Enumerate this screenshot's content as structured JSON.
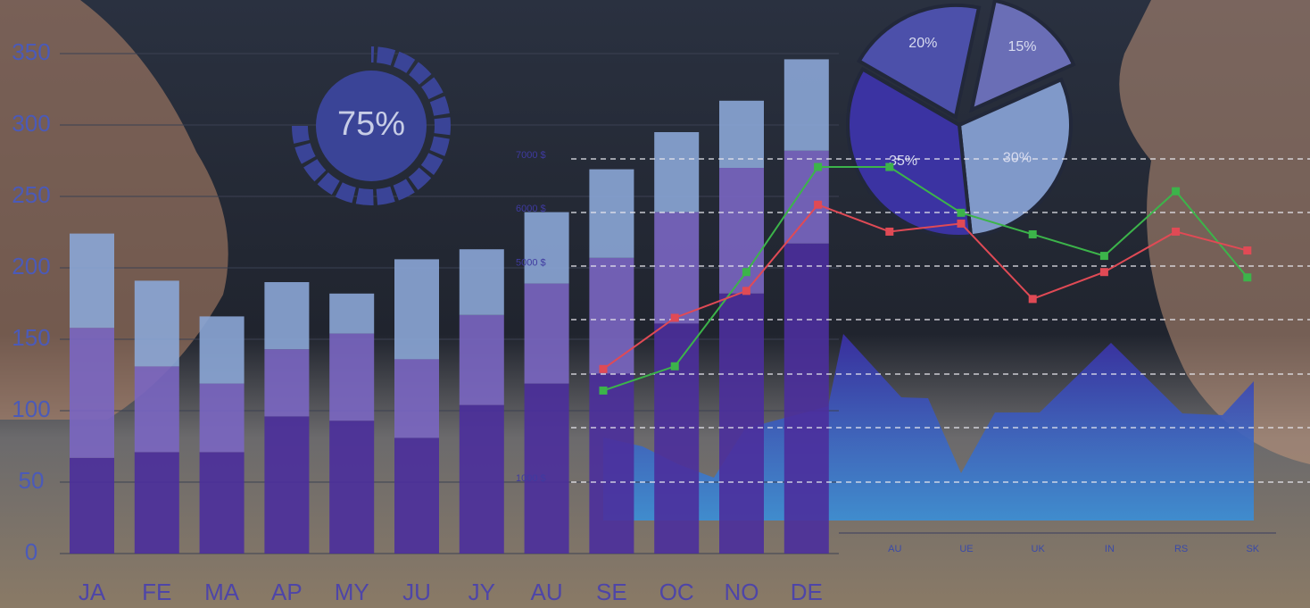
{
  "chart_data": [
    {
      "type": "stacked-bar",
      "categories": [
        "JA",
        "FE",
        "MA",
        "AP",
        "MY",
        "JU",
        "JY",
        "AU",
        "SE",
        "OC",
        "NO",
        "DE"
      ],
      "series": [
        {
          "color": "#4b2f9c",
          "values": [
            67,
            71,
            71,
            96,
            93,
            81,
            104,
            119,
            126,
            161,
            182,
            217
          ]
        },
        {
          "color": "#7a66c2",
          "values": [
            91,
            60,
            48,
            47,
            61,
            55,
            63,
            70,
            81,
            78,
            88,
            65
          ]
        },
        {
          "color": "#8ba6d6",
          "values": [
            66,
            60,
            47,
            47,
            28,
            70,
            46,
            50,
            62,
            56,
            47,
            64
          ]
        }
      ],
      "ylim": [
        0,
        350
      ],
      "yticks": [
        0,
        50,
        100,
        150,
        200,
        250,
        300,
        350
      ]
    },
    {
      "type": "gauge",
      "value": 75,
      "value_label": "75%",
      "color": "#3a4497"
    },
    {
      "type": "pie",
      "values": [
        20,
        15,
        30,
        35
      ],
      "value_labels": [
        "20%",
        "15%",
        "30%",
        "35%"
      ],
      "colors": [
        "#4c50aa",
        "#6a6eb6",
        "#8099c9",
        "#3b33a2"
      ]
    },
    {
      "type": "line",
      "categories": [
        null,
        null,
        null,
        null,
        "AU",
        "UE",
        "UK",
        "IN",
        "RS",
        "SK"
      ],
      "series": [
        {
          "color": "#3cb44a",
          "values": [
            2700,
            3150,
            4900,
            6850,
            6850,
            6000,
            5600,
            5200,
            6400,
            4800
          ]
        },
        {
          "color": "#e04a55",
          "values": [
            3100,
            4050,
            4550,
            6150,
            5650,
            5800,
            4400,
            4900,
            5650,
            5300
          ]
        }
      ],
      "ylim": [
        1000,
        7000
      ],
      "yticks": [
        {
          "value": 1000,
          "label": "1000 $"
        },
        {
          "value": 5000,
          "label": "5000 $"
        },
        {
          "value": 6000,
          "label": "6000 $"
        },
        {
          "value": 7000,
          "label": "7000 $"
        }
      ]
    }
  ]
}
